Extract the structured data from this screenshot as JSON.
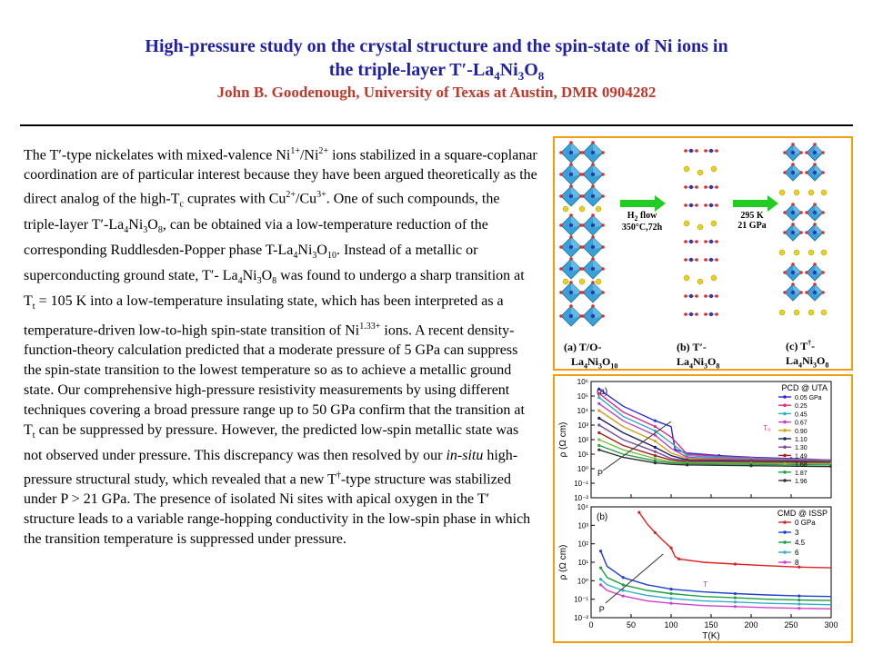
{
  "header": {
    "title_line1": "High-pressure study on the crystal structure and the spin-state of Ni ions in",
    "title_line2_prefix": "the triple-layer T′-La",
    "title_sub_4": "4",
    "title_ni": "Ni",
    "title_sub_3": "3",
    "title_o": "O",
    "title_sub_8": "8",
    "author": "John B. Goodenough, University of Texas at Austin, DMR 0904282"
  },
  "body": {
    "p1": "The T′-type nickelates with mixed-valence Ni",
    "p1_sup1": "1+",
    "p2": "/Ni",
    "p2_sup": "2+",
    "p3": " ions stabilized in a square-coplanar coordination are of particular interest because they have been argued theoretically as the direct analog of the high-T",
    "p3_sub": "c",
    "p4": " cuprates with Cu",
    "p4_sup": "2+",
    "p5": "/Cu",
    "p5_sup": "3+",
    "p6": ".  One of such compounds, the triple-layer T′-La",
    "p6_sub1": "4",
    "p6_b": "Ni",
    "p6_sub2": "3",
    "p6_c": "O",
    "p6_sub3": "8",
    "p7": ", can be obtained via a low-temperature reduction of the corresponding Ruddlesden-Popper phase T-La",
    "p7_sub1": "4",
    "p7_b": "Ni",
    "p7_sub2": "3",
    "p7_c": "O",
    "p7_sub3": "10",
    "p8": ". Instead of a metallic or superconducting ground state, T′- La",
    "p8_sub1": "4",
    "p8_b": "Ni",
    "p8_sub2": "3",
    "p8_c": "O",
    "p8_sub3": "8",
    "p9": " was found to undergo a sharp transition at T",
    "p9_sub": "t",
    "p10": " = 105 K into a low-temperature insulating state, which has been interpreted as a temperature-driven low-to-high spin-state transition of Ni",
    "p10_sup": "1.33+",
    "p11": " ions. A recent density-function-theory calculation predicted that a moderate pressure of 5 GPa can suppress the spin-state transition to the lowest temperature so as to achieve a metallic ground state. Our comprehensive high-pressure resistivity measurements by using different techniques covering a broad pressure range up to 50 GPa confirm that the transition at T",
    "p11_sub": "t",
    "p12": " can be suppressed by pressure. However, the predicted low-spin metallic state was not observed under pressure. This discrepancy was then resolved by our ",
    "p12_italic": "in-situ",
    "p13": " high-pressure structural study, which revealed that a new T",
    "p13_sup": "†",
    "p14": "-type structure was stabilized under P > 21 GPa. The presence of isolated Ni sites with apical oxygen in the T′ structure leads to a variable range-hopping conductivity in the low-spin phase in which the transition temperature is suppressed under pressure."
  },
  "structures": {
    "arrow1_line1": "H",
    "arrow1_sub": "2",
    "arrow1_line1b": " flow",
    "arrow1_line2": "350°C,72h",
    "arrow2_line1": "295 K",
    "arrow2_line2": "21 GPa",
    "label_a_1": "(a)  T/O-",
    "label_a_2": "La",
    "label_a_2s1": "4",
    "label_a_2b": "Ni",
    "label_a_2s2": "3",
    "label_a_2c": "O",
    "label_a_2s3": "10",
    "label_b_1": "(b) T′-",
    "label_b_2": "La",
    "label_b_2s1": "4",
    "label_b_2b": "Ni",
    "label_b_2s2": "3",
    "label_b_2c": "O",
    "label_b_2s3": "8",
    "label_c_1": "(c) T",
    "label_c_sup": "†",
    "label_c_1b": "-",
    "label_c_2": "La",
    "label_c_2s1": "4",
    "label_c_2b": "Ni",
    "label_c_2s2": "3",
    "label_c_2c": "O",
    "label_c_2s3": "8",
    "colors": {
      "octahedra": "#3aa0d8",
      "la_atom": "#e8d21c",
      "o_atom": "#d93030",
      "ni_atom": "#2d3aa8",
      "arrow": "#22cc22"
    }
  },
  "chart_data": [
    {
      "type": "line",
      "panel_label": "(a)",
      "legend_title": "PCD @ UTA",
      "ylabel": "ρ (Ω cm)",
      "yscale": "log",
      "ylim": [
        0.01,
        1000000
      ],
      "yticks": [
        "10⁻²",
        "10⁻¹",
        "10⁰",
        "10¹",
        "10²",
        "10³",
        "10⁴",
        "10⁵",
        "10⁶"
      ],
      "xlim": [
        0,
        300
      ],
      "annotations": [
        "T₀",
        "P"
      ],
      "series": [
        {
          "name": "0.05 GPa",
          "color": "#2a2ad0",
          "x": [
            10,
            40,
            80,
            100,
            105,
            120,
            160,
            200,
            250,
            300
          ],
          "y": [
            300000,
            20000,
            2000,
            800,
            20,
            12,
            8,
            6,
            5,
            4
          ]
        },
        {
          "name": "0.25",
          "color": "#e02a8c",
          "x": [
            10,
            40,
            80,
            100,
            120,
            160,
            200,
            250,
            300
          ],
          "y": [
            150000,
            8000,
            800,
            150,
            10,
            7,
            5.5,
            4.5,
            4
          ]
        },
        {
          "name": "0.45",
          "color": "#2bb0c0",
          "x": [
            10,
            40,
            80,
            100,
            120,
            160,
            200,
            250,
            300
          ],
          "y": [
            80000,
            4000,
            400,
            60,
            8,
            6,
            5,
            4.2,
            3.8
          ]
        },
        {
          "name": "0.67",
          "color": "#c040c0",
          "x": [
            10,
            40,
            80,
            100,
            120,
            160,
            200,
            250,
            300
          ],
          "y": [
            30000,
            2000,
            200,
            25,
            6,
            5,
            4.4,
            4,
            3.6
          ]
        },
        {
          "name": "0.90",
          "color": "#d0a020",
          "x": [
            10,
            40,
            80,
            100,
            120,
            160,
            200,
            250,
            300
          ],
          "y": [
            10000,
            800,
            80,
            12,
            5,
            4.3,
            4,
            3.7,
            3.4
          ]
        },
        {
          "name": "1.10",
          "color": "#202060",
          "x": [
            10,
            40,
            80,
            100,
            120,
            160,
            200,
            250,
            300
          ],
          "y": [
            3000,
            300,
            30,
            8,
            4,
            3.8,
            3.6,
            3.4,
            3.2
          ]
        },
        {
          "name": "1.30",
          "color": "#7a4aa0",
          "x": [
            10,
            40,
            80,
            100,
            120,
            160,
            200,
            250,
            300
          ],
          "y": [
            1000,
            100,
            15,
            5,
            3.5,
            3.3,
            3.2,
            3,
            2.9
          ]
        },
        {
          "name": "1.49",
          "color": "#a02020",
          "x": [
            10,
            40,
            80,
            100,
            120,
            160,
            200,
            250,
            300
          ],
          "y": [
            300,
            40,
            8,
            4,
            3,
            2.9,
            2.8,
            2.7,
            2.6
          ]
        },
        {
          "name": "1.68",
          "color": "#7ac040",
          "x": [
            10,
            40,
            80,
            100,
            120,
            160,
            200,
            250,
            300
          ],
          "y": [
            100,
            20,
            5,
            3,
            2.6,
            2.5,
            2.4,
            2.3,
            2.2
          ]
        },
        {
          "name": "1.87",
          "color": "#20a040",
          "x": [
            10,
            40,
            80,
            100,
            120,
            160,
            200,
            250,
            300
          ],
          "y": [
            40,
            10,
            3.5,
            2.5,
            2.2,
            2.1,
            2,
            1.9,
            1.8
          ]
        },
        {
          "name": "1.96",
          "color": "#303030",
          "x": [
            10,
            40,
            80,
            100,
            120,
            160,
            200,
            250,
            300
          ],
          "y": [
            20,
            6,
            2.5,
            2,
            1.8,
            1.7,
            1.6,
            1.5,
            1.4
          ]
        }
      ]
    },
    {
      "type": "line",
      "panel_label": "(b)",
      "legend_title": "CMD @ ISSP",
      "ylabel": "ρ (Ω cm)",
      "yscale": "log",
      "ylim": [
        0.01,
        10000
      ],
      "yticks": [
        "10⁻²",
        "10⁻¹",
        "10⁰",
        "10¹",
        "10²",
        "10³",
        "10⁴"
      ],
      "xlabel": "T(K)",
      "xlim": [
        0,
        300
      ],
      "xticks": [
        0,
        50,
        100,
        150,
        200,
        250,
        300
      ],
      "annotations": [
        "T",
        "P"
      ],
      "series": [
        {
          "name": "0 GPa",
          "color": "#e02020",
          "x": [
            60,
            70,
            80,
            90,
            100,
            105,
            110,
            140,
            180,
            220,
            260,
            300
          ],
          "y": [
            5000,
            1200,
            400,
            150,
            60,
            20,
            15,
            10,
            8,
            6.5,
            5.5,
            5
          ]
        },
        {
          "name": "3",
          "color": "#2040d0",
          "x": [
            12,
            20,
            40,
            70,
            100,
            140,
            180,
            220,
            260,
            300
          ],
          "y": [
            40,
            6,
            1.5,
            0.6,
            0.35,
            0.25,
            0.2,
            0.17,
            0.15,
            0.14
          ]
        },
        {
          "name": "4.5",
          "color": "#20a040",
          "x": [
            12,
            20,
            40,
            70,
            100,
            140,
            180,
            220,
            260,
            300
          ],
          "y": [
            5,
            1.5,
            0.6,
            0.3,
            0.2,
            0.14,
            0.12,
            0.1,
            0.09,
            0.085
          ]
        },
        {
          "name": "6",
          "color": "#30b0c8",
          "x": [
            12,
            20,
            40,
            70,
            100,
            140,
            180,
            220,
            260,
            300
          ],
          "y": [
            1.2,
            0.6,
            0.3,
            0.16,
            0.11,
            0.08,
            0.07,
            0.06,
            0.055,
            0.05
          ]
        },
        {
          "name": "8",
          "color": "#d040d0",
          "x": [
            12,
            20,
            40,
            70,
            100,
            140,
            180,
            220,
            260,
            300
          ],
          "y": [
            0.6,
            0.3,
            0.15,
            0.08,
            0.06,
            0.045,
            0.04,
            0.035,
            0.032,
            0.03
          ]
        }
      ]
    }
  ]
}
